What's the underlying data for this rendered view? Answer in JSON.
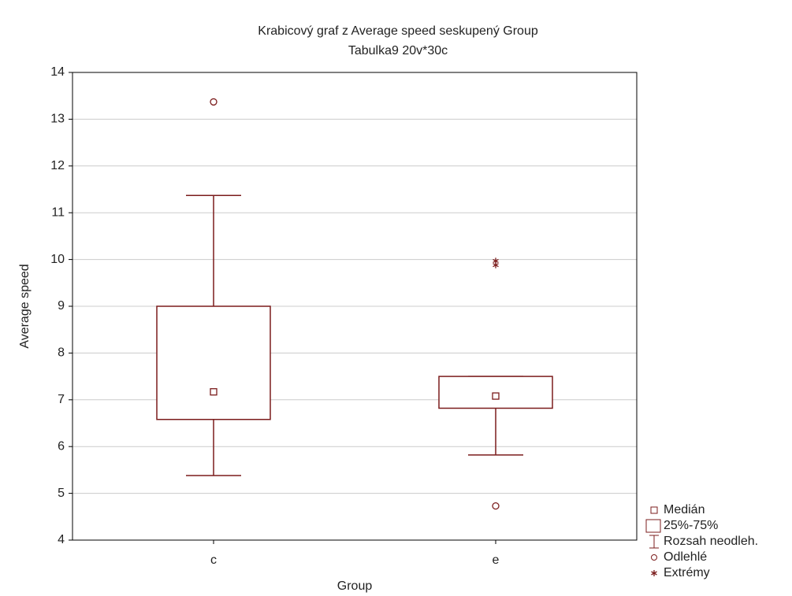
{
  "chart_data": {
    "type": "box",
    "title": "Krabicový graf z Average speed seskupený Group",
    "subtitle": "Tabulka9 20v*30c",
    "x_label": "Group",
    "y_label": "Average speed",
    "categories": [
      "c",
      "e"
    ],
    "whisker_low": [
      5.38,
      5.82
    ],
    "q1": [
      6.58,
      6.82
    ],
    "median": [
      7.17,
      7.08
    ],
    "q3": [
      9.0,
      7.5
    ],
    "whisker_high": [
      11.37,
      7.5
    ],
    "outliers": [
      [
        13.37
      ],
      [
        4.73
      ]
    ],
    "extremes": [
      [],
      [
        9.97,
        9.88
      ]
    ],
    "color": "#7b1c1c",
    "ylim": [
      4,
      14
    ],
    "yticks": [
      4,
      5,
      6,
      7,
      8,
      9,
      10,
      11,
      12,
      13,
      14
    ],
    "grid": true,
    "legend": [
      "Medián",
      "25%-75%",
      "Rozsah neodleh.",
      "Odlehlé",
      "Extrémy"
    ]
  }
}
